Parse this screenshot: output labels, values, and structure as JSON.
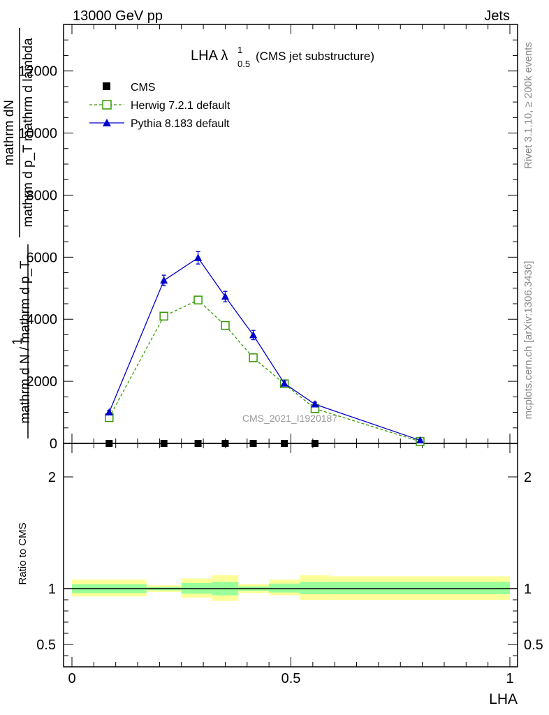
{
  "header": {
    "left": "13000 GeV pp",
    "right": "Jets"
  },
  "side_labels": {
    "rivet": "Rivet 3.1.10, ≥ 200k events",
    "mcplots": "mcplots.cern.ch [arXiv:1306.3436]"
  },
  "chart_data": {
    "type": "line",
    "title_main": "LHA λ",
    "title_sup": "1",
    "title_sub": "0.5",
    "title_suffix": "(CMS jet substructure)",
    "watermark": "CMS_2021_I1920187",
    "ylabel_main": {
      "numerator": "1",
      "denominator": "mathrm d N / mathrm d p_T",
      "dn_top": "mathrm d",
      "dn_mid": "N",
      "frac_num": "mathrm d^{2}N",
      "frac_den": "mathrm d p_T mathrm d lambda",
      "lines": [
        "mathrm dN",
        "mathrm d p",
        "T",
        "mathrm dlambda",
        "mathrm d N / mathrm d p",
        "T"
      ]
    },
    "ylabel_main_simple": [
      "mathrm d²N",
      "mathrm d p_T mathrm d lambda",
      "1",
      "mathrm d N / mathrm d p_T"
    ],
    "ylabel_ratio": "Ratio to CMS",
    "xlabel": "LHA",
    "xlim": [
      0,
      1
    ],
    "ylim": [
      0,
      13500
    ],
    "ratio_ylim": [
      0.3,
      2.3
    ],
    "x_ticks": [
      "0",
      "0.5",
      "1"
    ],
    "y_ticks": [
      "0",
      "2000",
      "4000",
      "6000",
      "8000",
      "10000",
      "12000"
    ],
    "ratio_ticks": [
      "0.5",
      "1",
      "2"
    ],
    "legend": {
      "cms": "CMS",
      "herwig": "Herwig 7.2.1 default",
      "pythia": "Pythia 8.183 default"
    },
    "series": [
      {
        "name": "CMS",
        "color": "#000000",
        "x": [
          0.085,
          0.21,
          0.288,
          0.35,
          0.414,
          0.485,
          0.555
        ],
        "y": [
          0,
          0,
          0,
          0,
          0,
          0,
          0
        ]
      },
      {
        "name": "Herwig 7.2.1 default",
        "color": "#339900",
        "x": [
          0.085,
          0.21,
          0.288,
          0.35,
          0.414,
          0.485,
          0.555,
          0.795
        ],
        "y": [
          830,
          4100,
          4620,
          3800,
          2760,
          1920,
          1120,
          60
        ]
      },
      {
        "name": "Pythia 8.183 default",
        "color": "#0000cc",
        "x": [
          0.085,
          0.21,
          0.288,
          0.35,
          0.414,
          0.485,
          0.555,
          0.795
        ],
        "y": [
          1000,
          5250,
          5980,
          4730,
          3490,
          1930,
          1260,
          100
        ],
        "yerr": [
          60,
          170,
          200,
          170,
          150,
          80,
          70,
          20
        ]
      }
    ],
    "ratio_bands": {
      "edges": [
        0,
        0.17,
        0.25,
        0.32,
        0.38,
        0.45,
        0.52,
        0.59,
        1.0
      ],
      "yellow": [
        [
          0.93,
          1.08
        ],
        [
          0.97,
          1.03
        ],
        [
          0.92,
          1.09
        ],
        [
          0.89,
          1.12
        ],
        [
          0.96,
          1.04
        ],
        [
          0.94,
          1.08
        ],
        [
          0.9,
          1.12
        ],
        [
          0.9,
          1.11
        ]
      ],
      "green": [
        [
          0.96,
          1.04
        ],
        [
          0.985,
          1.015
        ],
        [
          0.955,
          1.05
        ],
        [
          0.94,
          1.06
        ],
        [
          0.98,
          1.02
        ],
        [
          0.965,
          1.045
        ],
        [
          0.95,
          1.06
        ],
        [
          0.95,
          1.06
        ]
      ]
    }
  }
}
